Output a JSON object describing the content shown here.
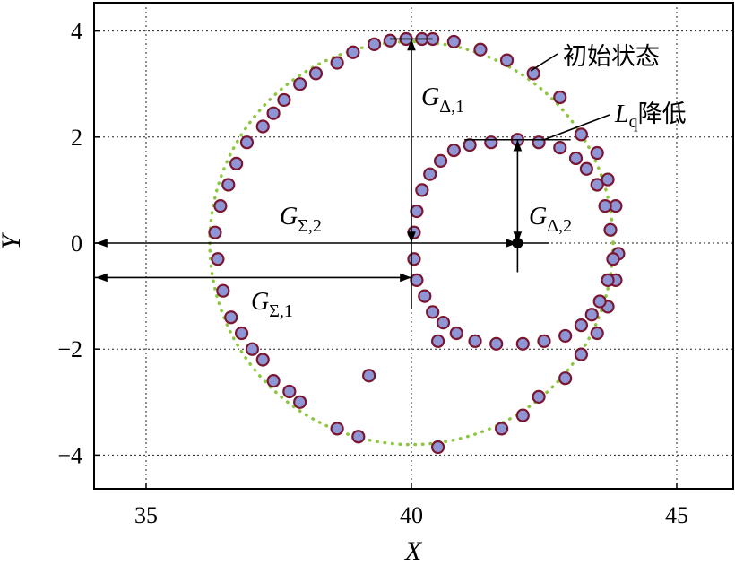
{
  "chart_data": {
    "type": "scatter",
    "xlabel": "X",
    "ylabel": "Y",
    "xlim": [
      34.1,
      46
    ],
    "ylim": [
      -4.6,
      4.6
    ],
    "x_ticks": [
      "35",
      "40",
      "45"
    ],
    "y_ticks": [
      "4",
      "2",
      "0",
      "−2",
      "−4"
    ],
    "grid": true,
    "colors": {
      "point_fill": "#8e96d6",
      "point_edge": "#7b1630",
      "reference": "#8dc63f"
    },
    "annotations": {
      "initial": "初始状态",
      "reduced_L": "L",
      "reduced_sub": "q",
      "reduced_cn": "降低",
      "g_delta1": "G",
      "g_delta1_sub": "Δ,1",
      "g_delta2": "G",
      "g_delta2_sub": "Δ,2",
      "g_sigma1": "G",
      "g_sigma1_sub": "Σ,1",
      "g_sigma2": "G",
      "g_sigma2_sub": "Σ,2"
    },
    "reference_circle": {
      "center": [
        40,
        0
      ],
      "radius": 3.8
    },
    "center_point": [
      42,
      0
    ],
    "series": [
      {
        "points": [
          [
            36.3,
            0.2
          ],
          [
            36.35,
            -0.3
          ],
          [
            36.4,
            0.7
          ],
          [
            36.45,
            -0.9
          ],
          [
            36.55,
            1.1
          ],
          [
            36.6,
            -1.4
          ],
          [
            36.7,
            1.5
          ],
          [
            36.8,
            -1.7
          ],
          [
            36.9,
            1.9
          ],
          [
            37.0,
            -2.0
          ],
          [
            37.2,
            2.2
          ],
          [
            37.2,
            -2.2
          ],
          [
            37.4,
            2.45
          ],
          [
            37.4,
            -2.6
          ],
          [
            37.6,
            2.7
          ],
          [
            37.7,
            -2.8
          ],
          [
            37.9,
            3.0
          ],
          [
            37.9,
            -3.0
          ],
          [
            38.2,
            3.2
          ],
          [
            38.6,
            3.4
          ],
          [
            38.6,
            -3.5
          ],
          [
            38.9,
            3.6
          ],
          [
            39.0,
            -3.65
          ],
          [
            39.3,
            3.75
          ],
          [
            39.6,
            3.82
          ],
          [
            39.9,
            3.85
          ],
          [
            40.2,
            3.85
          ],
          [
            40.4,
            3.85
          ],
          [
            40.8,
            3.8
          ],
          [
            41.3,
            3.65
          ],
          [
            41.8,
            3.45
          ],
          [
            42.3,
            3.2
          ],
          [
            42.8,
            2.75
          ],
          [
            43.2,
            2.05
          ],
          [
            43.5,
            1.7
          ],
          [
            43.7,
            1.2
          ],
          [
            43.85,
            0.7
          ],
          [
            43.9,
            -0.2
          ],
          [
            43.85,
            -0.7
          ],
          [
            43.7,
            -1.2
          ],
          [
            43.5,
            -1.7
          ],
          [
            43.2,
            -2.1
          ],
          [
            42.9,
            -2.55
          ],
          [
            42.4,
            -2.9
          ],
          [
            42.1,
            -3.25
          ],
          [
            41.7,
            -3.5
          ],
          [
            40.5,
            -3.85
          ],
          [
            39.2,
            -2.5
          ],
          [
            40.5,
            -1.85
          ]
        ]
      },
      {
        "points": [
          [
            40.05,
            0.2
          ],
          [
            40.05,
            -0.3
          ],
          [
            40.1,
            0.6
          ],
          [
            40.1,
            -0.7
          ],
          [
            40.2,
            1.0
          ],
          [
            40.25,
            -1.0
          ],
          [
            40.35,
            1.3
          ],
          [
            40.4,
            -1.3
          ],
          [
            40.55,
            1.55
          ],
          [
            40.6,
            -1.5
          ],
          [
            40.8,
            1.75
          ],
          [
            40.85,
            -1.7
          ],
          [
            41.1,
            1.85
          ],
          [
            41.2,
            -1.85
          ],
          [
            41.5,
            1.9
          ],
          [
            41.6,
            -1.9
          ],
          [
            42.0,
            1.95
          ],
          [
            42.1,
            -1.9
          ],
          [
            42.4,
            1.9
          ],
          [
            42.5,
            -1.85
          ],
          [
            42.8,
            1.8
          ],
          [
            42.9,
            -1.75
          ],
          [
            43.1,
            1.6
          ],
          [
            43.2,
            -1.55
          ],
          [
            43.3,
            1.4
          ],
          [
            43.4,
            -1.35
          ],
          [
            43.5,
            1.1
          ],
          [
            43.55,
            -1.1
          ],
          [
            43.65,
            0.7
          ],
          [
            43.7,
            -0.7
          ],
          [
            43.75,
            0.25
          ],
          [
            43.8,
            -0.3
          ]
        ]
      }
    ]
  }
}
